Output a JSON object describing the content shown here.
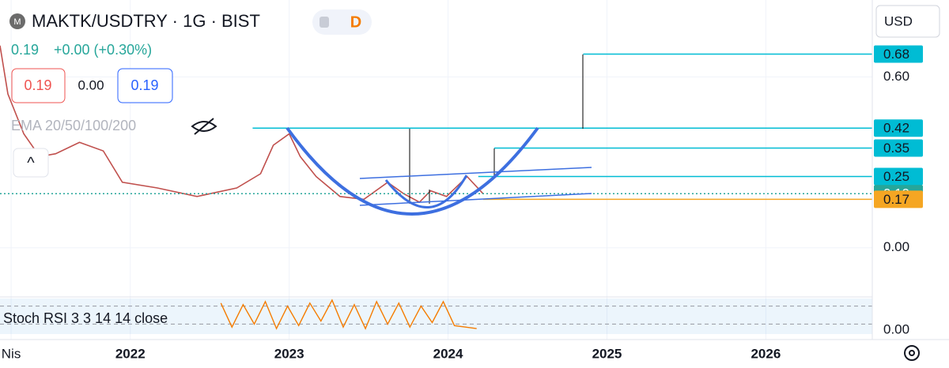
{
  "header": {
    "logo": "M",
    "title": "MAKTK/USDTRY · 1G · BIST",
    "mode": "D",
    "price": "0.19",
    "change": "+0.00 (+0.30%)",
    "sell": "0.19",
    "spread": "0.00",
    "buy": "0.19",
    "indicator": "EMA 20/50/100/200",
    "collapse": "^",
    "currency": "USD"
  },
  "chart_data": [
    {
      "type": "line",
      "xlim": [
        2021.18,
        2026.67
      ],
      "xticks": [
        {
          "value": 2021.25,
          "label": "Nis"
        },
        2022,
        2023,
        2024,
        2025,
        2026
      ],
      "ylim": [
        -0.17,
        0.87
      ],
      "yticks": [
        {
          "value": 0,
          "label": "0.00"
        },
        {
          "value": 0.6,
          "label": "0.60"
        }
      ],
      "series": [
        {
          "color": "#c0504d",
          "x": [
            2021.18,
            2021.23,
            2021.33,
            2021.43,
            2021.53,
            2021.68,
            2021.83,
            2021.95,
            2022.17,
            2022.42,
            2022.67,
            2022.82,
            2022.9,
            2023.0,
            2023.07,
            2023.17,
            2023.32,
            2023.47,
            2023.62,
            2023.72,
            2023.82,
            2023.89,
            2023.99,
            2024.12,
            2024.22
          ],
          "values": [
            0.71,
            0.54,
            0.4,
            0.32,
            0.33,
            0.37,
            0.34,
            0.23,
            0.21,
            0.18,
            0.21,
            0.26,
            0.36,
            0.4,
            0.32,
            0.25,
            0.18,
            0.17,
            0.23,
            0.19,
            0.16,
            0.2,
            0.18,
            0.25,
            0.19
          ]
        }
      ],
      "levels": [
        {
          "value": 0.68,
          "label": "0.68",
          "start": 2024.85,
          "color": "#00bcd4"
        },
        {
          "value": 0.42,
          "label": "0.42",
          "start": 2022.77,
          "color": "#00bcd4"
        },
        {
          "value": 0.35,
          "label": "0.35",
          "start": 2024.29,
          "color": "#00bcd4"
        },
        {
          "value": 0.25,
          "label": "0.25",
          "start": 2024.19,
          "color": "#00bcd4"
        },
        {
          "value": 0.19,
          "label": "0.19",
          "start": 2021.18,
          "color": "#26a69a",
          "dotted": true
        },
        {
          "value": 0.17,
          "label": "0.17",
          "start": 2024.22,
          "color": "#f5a623"
        }
      ]
    },
    {
      "type": "line",
      "title": "Stoch RSI 3 3 14 14 close",
      "ylim": [
        0,
        100
      ],
      "yticks": [
        {
          "value": 0,
          "label": "0.00"
        }
      ],
      "bands": [
        20,
        80
      ],
      "series": [
        {
          "color": "#f57c00",
          "x": [
            2022.57,
            2022.64,
            2022.71,
            2022.78,
            2022.85,
            2022.92,
            2022.99,
            2023.06,
            2023.13,
            2023.2,
            2023.27,
            2023.34,
            2023.41,
            2023.48,
            2023.55,
            2023.62,
            2023.69,
            2023.76,
            2023.83,
            2023.9,
            2023.97,
            2024.04,
            2024.11,
            2024.18
          ],
          "values": [
            90,
            10,
            85,
            20,
            95,
            5,
            80,
            15,
            90,
            30,
            100,
            10,
            85,
            5,
            95,
            20,
            90,
            10,
            80,
            25,
            95,
            15,
            10,
            5
          ]
        }
      ]
    }
  ]
}
